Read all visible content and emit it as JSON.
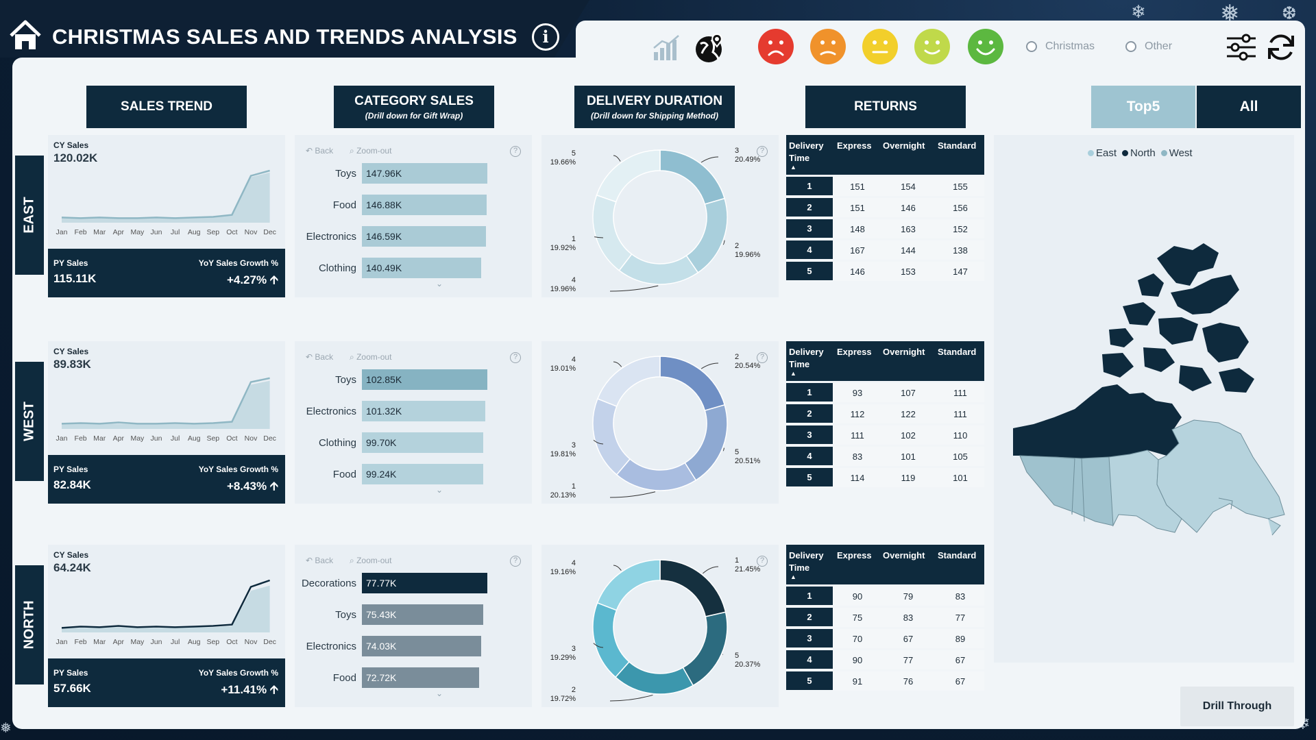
{
  "header": {
    "title": "CHRISTMAS SALES AND TRENDS ANALYSIS",
    "filters": [
      {
        "label": "Christmas"
      },
      {
        "label": "Other"
      }
    ],
    "faces": [
      {
        "name": "very-unhappy",
        "color": "#e53b2f"
      },
      {
        "name": "unhappy",
        "color": "#f0922b"
      },
      {
        "name": "neutral",
        "color": "#f2cf2b"
      },
      {
        "name": "happy",
        "color": "#c0d94a"
      },
      {
        "name": "very-happy",
        "color": "#5cb840"
      }
    ]
  },
  "columns": {
    "sales_trend": "SALES TREND",
    "category_sales": "CATEGORY SALES",
    "category_sub": "(Drill down for Gift Wrap)",
    "delivery_duration": "DELIVERY DURATION",
    "delivery_sub": "(Drill down for Shipping Method)",
    "returns": "RETURNS"
  },
  "tabs": {
    "top5": "Top5",
    "all": "All"
  },
  "toolbar": {
    "back": "Back",
    "zoom_out": "Zoom-out"
  },
  "returns_headers": {
    "delivery_time_1": "Delivery",
    "delivery_time_2": "Time",
    "express": "Express",
    "overnight": "Overnight",
    "standard": "Standard"
  },
  "months": [
    "Jan",
    "Feb",
    "Mar",
    "Apr",
    "May",
    "Jun",
    "Jul",
    "Aug",
    "Sep",
    "Oct",
    "Nov",
    "Dec"
  ],
  "regions": [
    {
      "name": "EAST",
      "cy_label": "CY Sales",
      "cy_value": "120.02K",
      "py_label": "PY Sales",
      "py_value": "115.11K",
      "yoy_label": "YoY Sales Growth %",
      "yoy_value": "+4.27% 🡩",
      "trend_cy": [
        8,
        7,
        8,
        7,
        7,
        8,
        7,
        8,
        9,
        12,
        72,
        80
      ],
      "trend_py": [
        7,
        8,
        7,
        8,
        7,
        7,
        8,
        7,
        8,
        11,
        70,
        77
      ],
      "categories": [
        {
          "name": "Toys",
          "value": 147.96,
          "label": "147.96K"
        },
        {
          "name": "Food",
          "value": 146.88,
          "label": "146.88K"
        },
        {
          "name": "Electronics",
          "value": 146.59,
          "label": "146.59K"
        },
        {
          "name": "Clothing",
          "value": 140.49,
          "label": "140.49K"
        }
      ],
      "bar_color": "#aacbd6",
      "donut": [
        {
          "label": "3",
          "pct": "20.49%",
          "value": 20.49
        },
        {
          "label": "2",
          "pct": "19.96%",
          "value": 19.96
        },
        {
          "label": "4",
          "pct": "19.96%",
          "value": 19.96
        },
        {
          "label": "1",
          "pct": "19.92%",
          "value": 19.92
        },
        {
          "label": "5",
          "pct": "19.66%",
          "value": 19.66
        }
      ],
      "donut_colors": [
        "#8fbed0",
        "#a9cfdc",
        "#c3dfe8",
        "#d6e9ef",
        "#e3f0f4"
      ],
      "returns": [
        {
          "dt": "1",
          "express": "151",
          "overnight": "154",
          "standard": "155"
        },
        {
          "dt": "2",
          "express": "151",
          "overnight": "146",
          "standard": "156"
        },
        {
          "dt": "3",
          "express": "148",
          "overnight": "163",
          "standard": "152"
        },
        {
          "dt": "4",
          "express": "167",
          "overnight": "144",
          "standard": "138"
        },
        {
          "dt": "5",
          "express": "146",
          "overnight": "153",
          "standard": "147"
        }
      ]
    },
    {
      "name": "WEST",
      "cy_label": "CY Sales",
      "cy_value": "89.83K",
      "py_label": "PY Sales",
      "py_value": "82.84K",
      "yoy_label": "YoY Sales Growth %",
      "yoy_value": "+8.43% 🡩",
      "trend_cy": [
        8,
        9,
        8,
        10,
        8,
        8,
        9,
        8,
        9,
        11,
        72,
        78
      ],
      "trend_py": [
        7,
        8,
        8,
        8,
        7,
        8,
        8,
        7,
        8,
        10,
        68,
        74
      ],
      "categories": [
        {
          "name": "Toys",
          "value": 102.85,
          "label": "102.85K"
        },
        {
          "name": "Electronics",
          "value": 101.32,
          "label": "101.32K"
        },
        {
          "name": "Clothing",
          "value": 99.7,
          "label": "99.70K"
        },
        {
          "name": "Food",
          "value": 99.24,
          "label": "99.24K"
        }
      ],
      "bar_color": "#b4d2dc",
      "bar_first_color": "#86b3c2",
      "donut": [
        {
          "label": "2",
          "pct": "20.54%",
          "value": 20.54
        },
        {
          "label": "5",
          "pct": "20.51%",
          "value": 20.51
        },
        {
          "label": "1",
          "pct": "20.13%",
          "value": 20.13
        },
        {
          "label": "3",
          "pct": "19.81%",
          "value": 19.81
        },
        {
          "label": "4",
          "pct": "19.01%",
          "value": 19.01
        }
      ],
      "donut_colors": [
        "#6f8fc4",
        "#8ea9d2",
        "#a9bde0",
        "#c3d2ea",
        "#dae4f2"
      ],
      "returns": [
        {
          "dt": "1",
          "express": "93",
          "overnight": "107",
          "standard": "111"
        },
        {
          "dt": "2",
          "express": "112",
          "overnight": "122",
          "standard": "111"
        },
        {
          "dt": "3",
          "express": "111",
          "overnight": "102",
          "standard": "110"
        },
        {
          "dt": "4",
          "express": "83",
          "overnight": "101",
          "standard": "105"
        },
        {
          "dt": "5",
          "express": "114",
          "overnight": "119",
          "standard": "101"
        }
      ]
    },
    {
      "name": "NORTH",
      "cy_label": "CY Sales",
      "cy_value": "64.24K",
      "py_label": "PY Sales",
      "py_value": "57.66K",
      "yoy_label": "YoY Sales Growth %",
      "yoy_value": "+11.41% 🡩",
      "trend_cy": [
        7,
        9,
        8,
        10,
        8,
        9,
        8,
        9,
        10,
        12,
        70,
        80
      ],
      "trend_py": [
        6,
        7,
        7,
        8,
        7,
        7,
        7,
        8,
        8,
        10,
        64,
        72
      ],
      "categories": [
        {
          "name": "Decorations",
          "value": 77.77,
          "label": "77.77K"
        },
        {
          "name": "Toys",
          "value": 75.43,
          "label": "75.43K"
        },
        {
          "name": "Electronics",
          "value": 74.03,
          "label": "74.03K"
        },
        {
          "name": "Food",
          "value": 72.72,
          "label": "72.72K"
        }
      ],
      "bar_color": "#7a8d9a",
      "bar_first_color": "#0e2a3d",
      "donut": [
        {
          "label": "1",
          "pct": "21.45%",
          "value": 21.45
        },
        {
          "label": "5",
          "pct": "20.37%",
          "value": 20.37
        },
        {
          "label": "2",
          "pct": "19.72%",
          "value": 19.72
        },
        {
          "label": "3",
          "pct": "19.29%",
          "value": 19.29
        },
        {
          "label": "4",
          "pct": "19.16%",
          "value": 19.16
        }
      ],
      "donut_colors": [
        "#15303f",
        "#2c6b7f",
        "#3c97ad",
        "#5bb8cf",
        "#8fd3e3"
      ],
      "returns": [
        {
          "dt": "1",
          "express": "90",
          "overnight": "79",
          "standard": "83"
        },
        {
          "dt": "2",
          "express": "75",
          "overnight": "83",
          "standard": "77"
        },
        {
          "dt": "3",
          "express": "70",
          "overnight": "67",
          "standard": "89"
        },
        {
          "dt": "4",
          "express": "90",
          "overnight": "77",
          "standard": "67"
        },
        {
          "dt": "5",
          "express": "91",
          "overnight": "76",
          "standard": "67"
        }
      ]
    }
  ],
  "map": {
    "legend": [
      {
        "label": "East",
        "color": "#a9cfdc"
      },
      {
        "label": "North",
        "color": "#0e2a3d"
      },
      {
        "label": "West",
        "color": "#8fb7c4"
      }
    ]
  },
  "drill_through": "Drill Through"
}
